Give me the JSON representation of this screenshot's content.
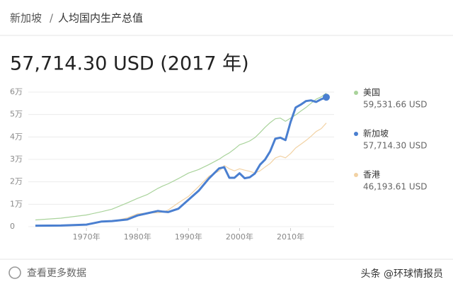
{
  "chart_data": {
    "type": "line",
    "breadcrumb": [
      "新加坡",
      "人均国内生产总值"
    ],
    "breadcrumb_separator": "/",
    "title": "57,714.30 USD (2017 年)",
    "x": [
      1960,
      1965,
      1970,
      1973,
      1975,
      1978,
      1980,
      1982,
      1984,
      1985,
      1986,
      1988,
      1990,
      1992,
      1994,
      1996,
      1997,
      1998,
      1999,
      2000,
      2001,
      2002,
      2003,
      2004,
      2005,
      2006,
      2007,
      2008,
      2009,
      2010,
      2011,
      2012,
      2013,
      2014,
      2015,
      2016,
      2017
    ],
    "xlim": [
      1960,
      2017
    ],
    "xticks": [
      {
        "value": 1970,
        "label": "1970年"
      },
      {
        "value": 1980,
        "label": "1980年"
      },
      {
        "value": 1990,
        "label": "1990年"
      },
      {
        "value": 2000,
        "label": "2000年"
      },
      {
        "value": 2010,
        "label": "2010年"
      }
    ],
    "ylim": [
      0,
      60000
    ],
    "yticks": [
      0,
      {
        "value": 10000,
        "label": "1万"
      },
      {
        "value": 20000,
        "label": "2万"
      },
      {
        "value": 30000,
        "label": "3万"
      },
      {
        "value": 40000,
        "label": "4万"
      },
      {
        "value": 50000,
        "label": "5万"
      },
      {
        "value": 60000,
        "label": "6万"
      }
    ],
    "grid": true,
    "legend": "right",
    "series": [
      {
        "name": "美国",
        "color": "#a9d39b",
        "values": [
          3000,
          3800,
          5200,
          6700,
          7800,
          10600,
          12600,
          14400,
          17100,
          18200,
          19100,
          21400,
          23900,
          25500,
          27700,
          30100,
          31600,
          32900,
          34600,
          36500,
          37300,
          38200,
          39700,
          41900,
          44300,
          46400,
          48100,
          48400,
          47000,
          48400,
          49800,
          51500,
          53100,
          55000,
          56800,
          57900,
          59531.66
        ],
        "value_labels": [
          null,
          null,
          null,
          null,
          null,
          null,
          null,
          null,
          null,
          null,
          null,
          null,
          null,
          null,
          null,
          null,
          null,
          null,
          null,
          null,
          null,
          null,
          null,
          null,
          null,
          null,
          null,
          null,
          null,
          null,
          null,
          null,
          null,
          null,
          null,
          null,
          "59,531.66 USD"
        ]
      },
      {
        "name": "新加坡",
        "color": "#4a7fd0",
        "values": [
          430,
          520,
          930,
          2300,
          2500,
          3200,
          5000,
          6000,
          7000,
          6700,
          6500,
          8000,
          12000,
          16000,
          21500,
          26000,
          26500,
          21800,
          21800,
          23800,
          21600,
          22000,
          23700,
          27600,
          29900,
          33600,
          39200,
          39700,
          38600,
          46600,
          53100,
          54400,
          56000,
          56300,
          55600,
          56800,
          57714.3
        ],
        "value_labels": [
          null,
          null,
          null,
          null,
          null,
          null,
          null,
          null,
          null,
          null,
          null,
          null,
          null,
          null,
          null,
          null,
          null,
          null,
          null,
          null,
          null,
          null,
          null,
          null,
          null,
          null,
          null,
          null,
          null,
          null,
          null,
          null,
          null,
          null,
          null,
          null,
          "57,714.30 USD"
        ]
      },
      {
        "name": "香港",
        "color": "#f2d2a4",
        "values": [
          430,
          680,
          960,
          2100,
          2300,
          3900,
          5700,
          6100,
          6200,
          6500,
          7400,
          10600,
          13500,
          17900,
          22500,
          24800,
          27300,
          25800,
          24900,
          25800,
          25200,
          24700,
          23900,
          24900,
          26600,
          28200,
          30600,
          31500,
          30700,
          32600,
          35100,
          36700,
          38400,
          40300,
          42400,
          43700,
          46193.61
        ],
        "value_labels": [
          null,
          null,
          null,
          null,
          null,
          null,
          null,
          null,
          null,
          null,
          null,
          null,
          null,
          null,
          null,
          null,
          null,
          null,
          null,
          null,
          null,
          null,
          null,
          null,
          null,
          null,
          null,
          null,
          null,
          null,
          null,
          null,
          null,
          null,
          null,
          null,
          "46,193.61 USD"
        ]
      }
    ],
    "more_link": "查看更多数据",
    "watermark": "头条 @环球情报员"
  }
}
